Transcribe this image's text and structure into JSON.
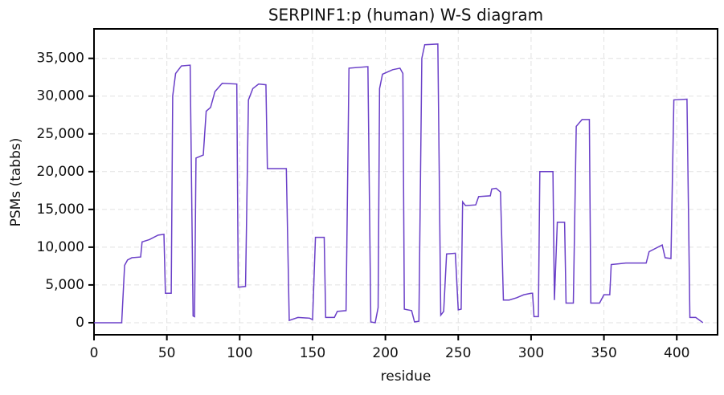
{
  "chart_data": {
    "type": "line",
    "title": "SERPINF1:p (human) W-S diagram",
    "x_label": "residue",
    "y_label": "PSMs (tabbs)",
    "x": [
      0,
      19,
      21,
      23,
      26,
      32,
      33,
      38,
      44,
      48,
      49,
      53,
      54,
      56,
      60,
      66,
      68,
      69,
      70,
      75,
      77,
      80,
      83,
      88,
      98,
      99,
      104,
      106,
      109,
      113,
      118,
      119,
      132,
      134,
      140,
      148,
      150,
      152,
      158,
      159,
      165,
      167,
      173,
      175,
      188,
      190,
      193,
      195,
      196,
      198,
      205,
      210,
      212,
      213,
      218,
      220,
      223,
      225,
      227,
      236,
      238,
      240,
      242,
      248,
      250,
      252,
      253,
      255,
      262,
      264,
      272,
      273,
      276,
      279,
      281,
      285,
      290,
      295,
      300,
      301,
      302,
      305,
      306,
      315,
      316,
      318,
      323,
      324,
      329,
      331,
      335,
      340,
      341,
      347,
      350,
      354,
      355,
      360,
      365,
      379,
      381,
      390,
      392,
      396,
      398,
      407,
      409,
      413,
      418
    ],
    "series": [
      {
        "name": "PSMs",
        "color": "#6a3fc8",
        "values": [
          0,
          0,
          7600,
          8300,
          8600,
          8700,
          10700,
          11000,
          11600,
          11700,
          3900,
          3900,
          30000,
          33000,
          34000,
          34100,
          900,
          800,
          21800,
          22200,
          28000,
          28500,
          30600,
          31700,
          31600,
          4700,
          4800,
          29500,
          31000,
          31600,
          31500,
          20400,
          20400,
          300,
          700,
          600,
          400,
          11300,
          11300,
          700,
          700,
          1500,
          1600,
          33700,
          33900,
          100,
          0,
          2000,
          31000,
          32900,
          33500,
          33700,
          33000,
          1800,
          1600,
          100,
          200,
          35000,
          36800,
          36900,
          1000,
          1500,
          9100,
          9200,
          1700,
          1800,
          16000,
          15500,
          15600,
          16700,
          16800,
          17700,
          17800,
          17300,
          3000,
          3000,
          3300,
          3700,
          3900,
          3900,
          800,
          800,
          20000,
          20000,
          3000,
          13300,
          13300,
          2600,
          2600,
          26000,
          26900,
          26900,
          2600,
          2600,
          3700,
          3700,
          7700,
          7800,
          7900,
          7900,
          9400,
          10300,
          8600,
          8500,
          29500,
          29600,
          700,
          700,
          0
        ]
      }
    ],
    "xlim": [
      0,
      428
    ],
    "xticks": [
      0,
      50,
      100,
      150,
      200,
      250,
      300,
      350,
      400
    ],
    "ylim": [
      -1600,
      38900
    ],
    "yticks": [
      0,
      {
        "value": 5000,
        "label": "5,000"
      },
      {
        "value": 10000,
        "label": "10,000"
      },
      {
        "value": 15000,
        "label": "15,000"
      },
      {
        "value": 20000,
        "label": "20,000"
      },
      {
        "value": 25000,
        "label": "25,000"
      },
      {
        "value": 30000,
        "label": "30,000"
      },
      {
        "value": 35000,
        "label": "35,000"
      }
    ],
    "grid": true
  }
}
